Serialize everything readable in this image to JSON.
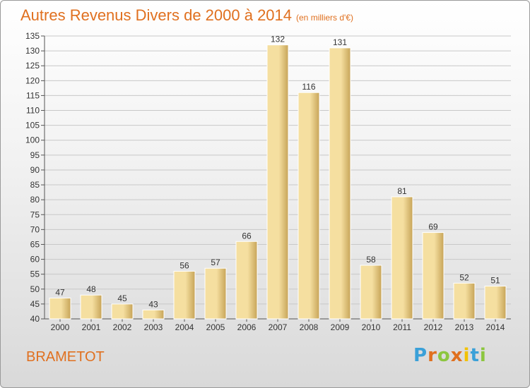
{
  "header": {
    "title": "Autres Revenus Divers de 2000 à 2014",
    "subtitle": "(en milliers d'€)"
  },
  "footer": {
    "commune": "BRAMETOT",
    "logo_letters": [
      "P",
      "r",
      "o",
      "x",
      "i",
      "t",
      "i"
    ],
    "logo_colors": [
      "#3aa0d8",
      "#e0701f",
      "#8cc63f",
      "#e0701f",
      "#f2c200",
      "#3aa0d8",
      "#8cc63f"
    ]
  },
  "chart_data": {
    "type": "bar",
    "categories": [
      "2000",
      "2001",
      "2002",
      "2003",
      "2004",
      "2005",
      "2006",
      "2007",
      "2008",
      "2009",
      "2010",
      "2011",
      "2012",
      "2013",
      "2014"
    ],
    "values": [
      47,
      48,
      45,
      43,
      56,
      57,
      66,
      132,
      116,
      131,
      58,
      81,
      69,
      52,
      51
    ],
    "title": "Autres Revenus Divers de 2000 à 2014",
    "ylim": [
      40,
      135
    ],
    "yticks": [
      40,
      45,
      50,
      55,
      60,
      65,
      70,
      75,
      80,
      85,
      90,
      95,
      100,
      105,
      110,
      115,
      120,
      125,
      130,
      135
    ],
    "grid": true,
    "bar_color_light": "#f5dfa0",
    "bar_color_dark": "#c7a458",
    "grid_color": "#c8c8c8"
  }
}
